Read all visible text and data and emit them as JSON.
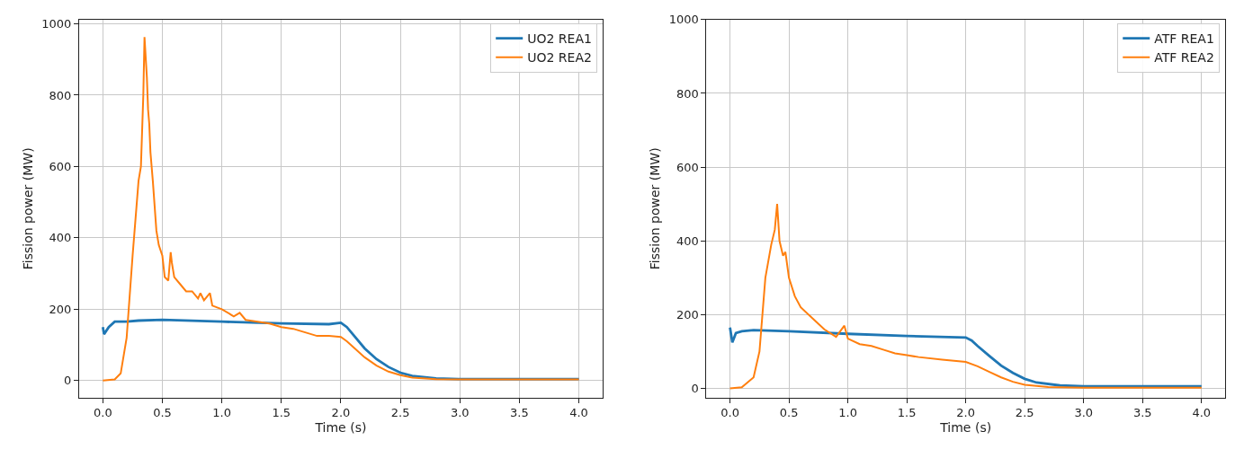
{
  "chart_data": [
    {
      "type": "line",
      "xlabel": "Time (s)",
      "ylabel": "Fission power (MW)",
      "xlim": [
        -0.2,
        4.2
      ],
      "ylim": [
        -48,
        1012
      ],
      "xticks": [
        {
          "value": 0,
          "label": "0.0"
        },
        {
          "value": 0.5,
          "label": "0.5"
        },
        {
          "value": 1,
          "label": "1.0"
        },
        {
          "value": 1.5,
          "label": "1.5"
        },
        {
          "value": 2,
          "label": "2.0"
        },
        {
          "value": 2.5,
          "label": "2.5"
        },
        {
          "value": 3,
          "label": "3.0"
        },
        {
          "value": 3.5,
          "label": "3.5"
        },
        {
          "value": 4,
          "label": "4.0"
        }
      ],
      "yticks": [
        0,
        200,
        400,
        600,
        800,
        1000
      ],
      "grid": true,
      "legend": "top right",
      "line_style": "solid",
      "series": [
        {
          "name": "UO2 REA1",
          "color": "#1f77b4",
          "x": [
            0,
            0.01,
            0.05,
            0.1,
            0.2,
            0.3,
            0.5,
            1.0,
            1.5,
            1.9,
            2.0,
            2.05,
            2.1,
            2.2,
            2.3,
            2.4,
            2.5,
            2.6,
            2.8,
            3.0,
            4.0
          ],
          "values": [
            150,
            130,
            150,
            165,
            165,
            168,
            170,
            165,
            160,
            158,
            162,
            150,
            130,
            90,
            60,
            38,
            22,
            13,
            6,
            4,
            4
          ]
        },
        {
          "name": "UO2 REA2",
          "color": "#ff7f0e",
          "x": [
            0,
            0.1,
            0.15,
            0.2,
            0.25,
            0.3,
            0.32,
            0.34,
            0.35,
            0.37,
            0.38,
            0.39,
            0.4,
            0.42,
            0.45,
            0.47,
            0.5,
            0.52,
            0.55,
            0.57,
            0.58,
            0.6,
            0.65,
            0.7,
            0.75,
            0.8,
            0.82,
            0.85,
            0.9,
            0.92,
            1.0,
            1.1,
            1.15,
            1.2,
            1.3,
            1.4,
            1.5,
            1.6,
            1.7,
            1.8,
            1.9,
            2.0,
            2.05,
            2.1,
            2.2,
            2.3,
            2.4,
            2.5,
            2.6,
            2.8,
            3.0,
            4.0
          ],
          "values": [
            0,
            3,
            20,
            120,
            350,
            560,
            600,
            800,
            963,
            850,
            760,
            720,
            640,
            560,
            420,
            380,
            350,
            290,
            280,
            360,
            330,
            290,
            270,
            250,
            250,
            230,
            245,
            225,
            245,
            210,
            200,
            180,
            190,
            170,
            165,
            160,
            150,
            145,
            135,
            125,
            125,
            122,
            110,
            95,
            65,
            42,
            25,
            15,
            8,
            4,
            3,
            3
          ]
        }
      ]
    },
    {
      "type": "line",
      "xlabel": "Time (s)",
      "ylabel": "Fission power (MW)",
      "xlim": [
        -0.2,
        4.2
      ],
      "ylim": [
        -25,
        1000
      ],
      "xticks": [
        {
          "value": 0,
          "label": "0.0"
        },
        {
          "value": 0.5,
          "label": "0.5"
        },
        {
          "value": 1,
          "label": "1.0"
        },
        {
          "value": 1.5,
          "label": "1.5"
        },
        {
          "value": 2,
          "label": "2.0"
        },
        {
          "value": 2.5,
          "label": "2.5"
        },
        {
          "value": 3,
          "label": "3.0"
        },
        {
          "value": 3.5,
          "label": "3.5"
        },
        {
          "value": 4,
          "label": "4.0"
        }
      ],
      "yticks": [
        0,
        200,
        400,
        600,
        800,
        1000
      ],
      "grid": true,
      "legend": "top right",
      "line_style": "solid",
      "series": [
        {
          "name": "ATF REA1",
          "color": "#1f77b4",
          "x": [
            0,
            0.02,
            0.05,
            0.1,
            0.2,
            0.5,
            1.0,
            1.5,
            2.0,
            2.05,
            2.1,
            2.2,
            2.3,
            2.4,
            2.5,
            2.6,
            2.8,
            3.0,
            4.0
          ],
          "values": [
            165,
            125,
            150,
            155,
            158,
            155,
            148,
            142,
            138,
            130,
            115,
            88,
            62,
            42,
            26,
            16,
            8,
            6,
            6
          ]
        },
        {
          "name": "ATF REA2",
          "color": "#ff7f0e",
          "x": [
            0,
            0.1,
            0.2,
            0.25,
            0.3,
            0.35,
            0.38,
            0.4,
            0.42,
            0.45,
            0.47,
            0.5,
            0.55,
            0.6,
            0.7,
            0.8,
            0.9,
            0.97,
            1.0,
            1.1,
            1.2,
            1.3,
            1.4,
            1.5,
            1.6,
            1.8,
            2.0,
            2.1,
            2.2,
            2.3,
            2.4,
            2.5,
            2.7,
            3.0,
            4.0
          ],
          "values": [
            0,
            3,
            30,
            100,
            300,
            390,
            430,
            500,
            400,
            360,
            370,
            300,
            250,
            220,
            190,
            160,
            140,
            170,
            135,
            120,
            115,
            105,
            95,
            90,
            85,
            78,
            72,
            60,
            45,
            30,
            18,
            10,
            4,
            2,
            2
          ]
        }
      ]
    }
  ]
}
